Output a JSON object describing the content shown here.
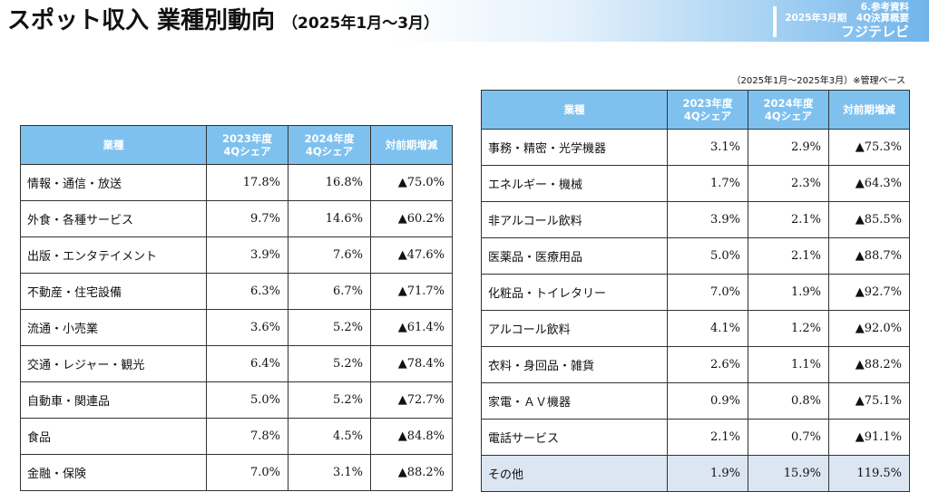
{
  "header": {
    "title": "スポット収入 業種別動向",
    "period": "（2025年1月〜3月）",
    "section": "6.参考資料",
    "report": "2025年3月期　4Q決算概要",
    "brand": "フジテレビ"
  },
  "note": "（2025年1月〜2025年3月）※管理ベース",
  "columns": {
    "industry": "業種",
    "share_2023": [
      "2023年度",
      "4Qシェア"
    ],
    "share_2024": [
      "2024年度",
      "4Qシェア"
    ],
    "yoy": "対前期増減"
  },
  "left_table": {
    "rows": [
      {
        "industry": "情報・通信・放送",
        "share_2023": "17.8%",
        "share_2024": "16.8%",
        "yoy": "▲75.0%"
      },
      {
        "industry": "外食・各種サービス",
        "share_2023": "9.7%",
        "share_2024": "14.6%",
        "yoy": "▲60.2%"
      },
      {
        "industry": "出版・エンタテイメント",
        "share_2023": "3.9%",
        "share_2024": "7.6%",
        "yoy": "▲47.6%"
      },
      {
        "industry": "不動産・住宅設備",
        "share_2023": "6.3%",
        "share_2024": "6.7%",
        "yoy": "▲71.7%"
      },
      {
        "industry": "流通・小売業",
        "share_2023": "3.6%",
        "share_2024": "5.2%",
        "yoy": "▲61.4%"
      },
      {
        "industry": "交通・レジャー・観光",
        "share_2023": "6.4%",
        "share_2024": "5.2%",
        "yoy": "▲78.4%"
      },
      {
        "industry": "自動車・関連品",
        "share_2023": "5.0%",
        "share_2024": "5.2%",
        "yoy": "▲72.7%"
      },
      {
        "industry": "食品",
        "share_2023": "7.8%",
        "share_2024": "4.5%",
        "yoy": "▲84.8%"
      },
      {
        "industry": "金融・保険",
        "share_2023": "7.0%",
        "share_2024": "3.1%",
        "yoy": "▲88.2%"
      }
    ]
  },
  "right_table": {
    "rows": [
      {
        "industry": "事務・精密・光学機器",
        "share_2023": "3.1%",
        "share_2024": "2.9%",
        "yoy": "▲75.3%"
      },
      {
        "industry": "エネルギー・機械",
        "share_2023": "1.7%",
        "share_2024": "2.3%",
        "yoy": "▲64.3%"
      },
      {
        "industry": "非アルコール飲料",
        "share_2023": "3.9%",
        "share_2024": "2.1%",
        "yoy": "▲85.5%"
      },
      {
        "industry": "医薬品・医療用品",
        "share_2023": "5.0%",
        "share_2024": "2.1%",
        "yoy": "▲88.7%"
      },
      {
        "industry": "化粧品・トイレタリー",
        "share_2023": "7.0%",
        "share_2024": "1.9%",
        "yoy": "▲92.7%"
      },
      {
        "industry": "アルコール飲料",
        "share_2023": "4.1%",
        "share_2024": "1.2%",
        "yoy": "▲92.0%"
      },
      {
        "industry": "衣料・身回品・雑貨",
        "share_2023": "2.6%",
        "share_2024": "1.1%",
        "yoy": "▲88.2%"
      },
      {
        "industry": "家電・ＡＶ機器",
        "share_2023": "0.9%",
        "share_2024": "0.8%",
        "yoy": "▲75.1%"
      },
      {
        "industry": "電話サービス",
        "share_2023": "2.1%",
        "share_2024": "0.7%",
        "yoy": "▲91.1%"
      },
      {
        "industry": "その他",
        "share_2023": "1.9%",
        "share_2024": "15.9%",
        "yoy": "119.5%",
        "highlight": true
      }
    ]
  },
  "colors": {
    "header_fill": "#7ec1ef",
    "highlight_row": "#dce6f3",
    "banner_end": "#6fb4ea"
  }
}
